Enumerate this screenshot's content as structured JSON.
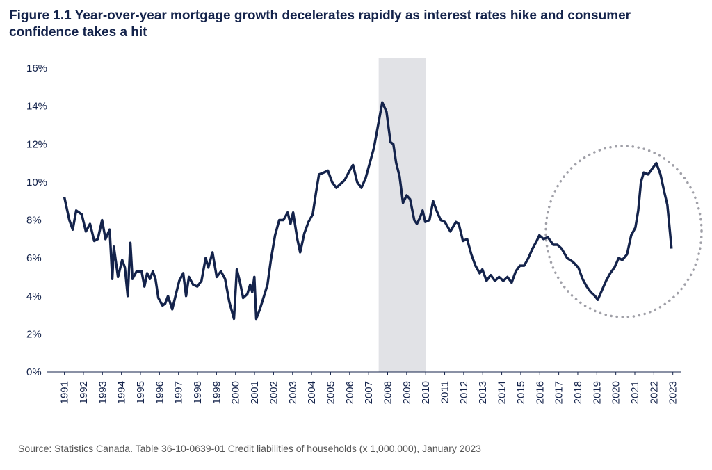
{
  "chart_data": {
    "type": "line",
    "title": [
      "Figure 1.1  Year-over-year mortgage growth decelerates rapidly as interest rates hike and consumer",
      "confidence takes a hit"
    ],
    "source": "Source: Statistics Canada. Table 36-10-0639-01 Credit liabilities of households (x 1,000,000), January 2023",
    "xlim": [
      1990.1,
      2023.45
    ],
    "xticks": [
      1991,
      1992,
      1993,
      1994,
      1995,
      1996,
      1997,
      1998,
      1999,
      2000,
      2001,
      2002,
      2003,
      2004,
      2005,
      2006,
      2007,
      2008,
      2009,
      2010,
      2011,
      2012,
      2013,
      2014,
      2015,
      2016,
      2017,
      2018,
      2019,
      2020,
      2021,
      2022,
      2023
    ],
    "ylim": [
      0,
      16
    ],
    "yticks": [
      {
        "value": 0,
        "label": "0%"
      },
      {
        "value": 2,
        "label": "2%"
      },
      {
        "value": 4,
        "label": "4%"
      },
      {
        "value": 6,
        "label": "6%"
      },
      {
        "value": 8,
        "label": "8%"
      },
      {
        "value": 10,
        "label": "10%"
      },
      {
        "value": 12,
        "label": "12%"
      },
      {
        "value": 14,
        "label": "14%"
      },
      {
        "value": 16,
        "label": "16%"
      }
    ],
    "grid": false,
    "shaded_x": [
      2007.53,
      2010.02
    ],
    "x": [
      1991.0,
      1991.26,
      1991.44,
      1991.62,
      1991.91,
      1992.13,
      1992.35,
      1992.57,
      1992.76,
      1992.98,
      1993.16,
      1993.38,
      1993.52,
      1993.6,
      1993.82,
      1994.04,
      1994.18,
      1994.33,
      1994.47,
      1994.58,
      1994.8,
      1995.06,
      1995.21,
      1995.35,
      1995.5,
      1995.65,
      1995.79,
      1995.94,
      1996.16,
      1996.3,
      1996.45,
      1996.67,
      1996.89,
      1997.04,
      1997.25,
      1997.4,
      1997.55,
      1997.77,
      1997.99,
      1998.21,
      1998.43,
      1998.57,
      1998.79,
      1999.01,
      1999.23,
      1999.45,
      1999.67,
      1999.92,
      2000.07,
      2000.22,
      2000.4,
      2000.62,
      2000.77,
      2000.88,
      2000.99,
      2001.09,
      2001.28,
      2001.5,
      2001.68,
      2001.86,
      2002.08,
      2002.3,
      2002.52,
      2002.74,
      2002.89,
      2003.03,
      2003.25,
      2003.4,
      2003.62,
      2003.84,
      2004.06,
      2004.24,
      2004.39,
      2004.64,
      2004.86,
      2005.08,
      2005.3,
      2005.52,
      2005.74,
      2006.0,
      2006.18,
      2006.4,
      2006.62,
      2006.84,
      2007.06,
      2007.28,
      2007.5,
      2007.72,
      2007.94,
      2008.15,
      2008.3,
      2008.45,
      2008.63,
      2008.81,
      2009.0,
      2009.18,
      2009.4,
      2009.54,
      2009.69,
      2009.84,
      2009.98,
      2010.2,
      2010.39,
      2010.57,
      2010.79,
      2011.01,
      2011.3,
      2011.59,
      2011.74,
      2011.96,
      2012.18,
      2012.4,
      2012.62,
      2012.84,
      2012.98,
      2013.2,
      2013.42,
      2013.64,
      2013.86,
      2014.08,
      2014.3,
      2014.52,
      2014.74,
      2014.96,
      2015.18,
      2015.4,
      2015.62,
      2015.84,
      2015.98,
      2016.2,
      2016.42,
      2016.71,
      2016.93,
      2017.15,
      2017.44,
      2017.74,
      2018.03,
      2018.25,
      2018.47,
      2018.69,
      2018.91,
      2019.05,
      2019.27,
      2019.49,
      2019.71,
      2019.93,
      2020.15,
      2020.34,
      2020.59,
      2020.81,
      2021.03,
      2021.18,
      2021.32,
      2021.47,
      2021.69,
      2021.91,
      2022.13,
      2022.35,
      2022.57,
      2022.71,
      2022.93
    ],
    "series": [
      {
        "color": "#14234b",
        "values": [
          9.2,
          8.0,
          7.5,
          8.5,
          8.3,
          7.4,
          7.8,
          6.9,
          7.0,
          8.0,
          7.0,
          7.5,
          4.9,
          6.6,
          5.0,
          5.9,
          5.5,
          4.0,
          6.8,
          4.9,
          5.3,
          5.3,
          4.5,
          5.2,
          4.9,
          5.3,
          4.9,
          3.9,
          3.5,
          3.6,
          4.0,
          3.3,
          4.2,
          4.8,
          5.2,
          4.0,
          5.0,
          4.6,
          4.5,
          4.8,
          6.0,
          5.5,
          6.3,
          5.0,
          5.3,
          4.9,
          3.7,
          2.8,
          5.4,
          4.8,
          3.9,
          4.1,
          4.6,
          4.2,
          5.0,
          2.8,
          3.3,
          4.0,
          4.6,
          5.9,
          7.2,
          8.0,
          8.0,
          8.4,
          7.8,
          8.4,
          7.0,
          6.3,
          7.3,
          7.9,
          8.3,
          9.5,
          10.4,
          10.5,
          10.6,
          10.0,
          9.7,
          9.9,
          10.1,
          10.6,
          10.9,
          10.0,
          9.7,
          10.2,
          11.0,
          11.8,
          13.0,
          14.2,
          13.7,
          12.1,
          12.0,
          11.0,
          10.3,
          8.9,
          9.3,
          9.1,
          8.0,
          7.8,
          8.1,
          8.5,
          7.9,
          8.0,
          9.0,
          8.5,
          8.0,
          7.9,
          7.4,
          7.9,
          7.8,
          6.9,
          7.0,
          6.2,
          5.6,
          5.2,
          5.4,
          4.8,
          5.1,
          4.8,
          5.0,
          4.8,
          5.0,
          4.7,
          5.3,
          5.6,
          5.6,
          6.0,
          6.5,
          6.9,
          7.2,
          7.0,
          7.1,
          6.7,
          6.7,
          6.5,
          6.0,
          5.8,
          5.5,
          4.9,
          4.5,
          4.2,
          4.0,
          3.8,
          4.3,
          4.8,
          5.2,
          5.5,
          6.0,
          5.9,
          6.2,
          7.2,
          7.6,
          8.5,
          10.0,
          10.5,
          10.4,
          10.7,
          11.0,
          10.4,
          9.4,
          8.8,
          6.5
        ]
      }
    ]
  }
}
